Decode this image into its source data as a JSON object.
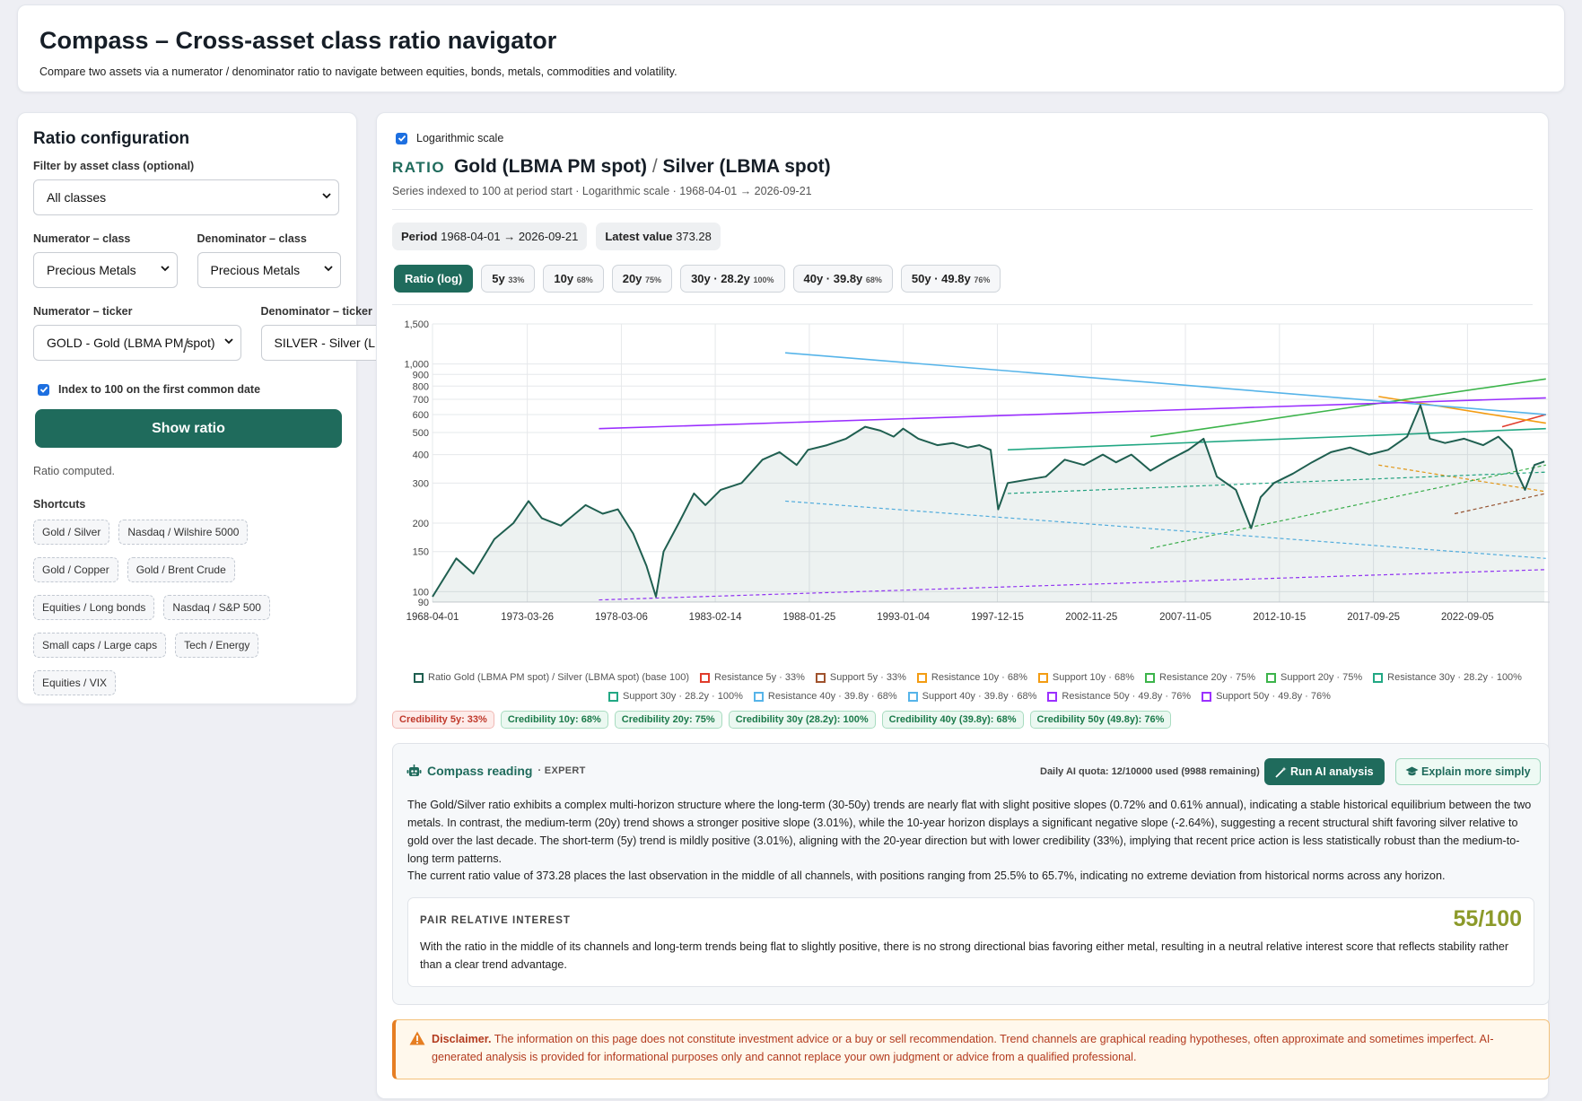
{
  "header": {
    "title": "Compass – Cross-asset class ratio navigator",
    "subtitle": "Compare two assets via a numerator / denominator ratio to navigate between equities, bonds, metals, commodities and volatility."
  },
  "config": {
    "title": "Ratio configuration",
    "filter_label": "Filter by asset class (optional)",
    "filter_value": "All classes",
    "num_class_label": "Numerator – class",
    "num_class_value": "Precious Metals",
    "den_class_label": "Denominator – class",
    "den_class_value": "Precious Metals",
    "num_ticker_label": "Numerator – ticker",
    "num_ticker_value": "GOLD - Gold (LBMA PM spot)",
    "den_ticker_label": "Denominator – ticker",
    "den_ticker_value": "SILVER - Silver (LBMA spot)",
    "slash": "/",
    "index_label": "Index to 100 on the first common date",
    "index_checked": true,
    "show_button": "Show ratio",
    "status": "Ratio computed.",
    "shortcuts_label": "Shortcuts",
    "shortcuts": [
      "Gold / Silver",
      "Nasdaq / Wilshire 5000",
      "Gold / Copper",
      "Gold / Brent Crude",
      "Equities / Long bonds",
      "Nasdaq / S&P 500",
      "Small caps / Large caps",
      "Tech / Energy",
      "Equities / VIX"
    ]
  },
  "main": {
    "log_label": "Logarithmic scale",
    "ratio_tag": "RATIO",
    "numerator": "Gold (LBMA PM spot)",
    "sep": "/",
    "denominator": "Silver (LBMA spot)",
    "meta": "Series indexed to 100 at period start · Logarithmic scale · 1968-04-01 → 2026-09-21",
    "period_label": "Period",
    "period_value": "1968-04-01 → 2026-09-21",
    "latest_label": "Latest value",
    "latest_value": "373.28",
    "tabs": [
      {
        "label": "Ratio (log)",
        "sub": "",
        "active": true
      },
      {
        "label": "5y",
        "sub": "33%"
      },
      {
        "label": "10y",
        "sub": "68%"
      },
      {
        "label": "20y",
        "sub": "75%"
      },
      {
        "label": "30y · 28.2y",
        "sub": "100%"
      },
      {
        "label": "40y · 39.8y",
        "sub": "68%"
      },
      {
        "label": "50y · 49.8y",
        "sub": "76%"
      }
    ]
  },
  "chart_data": {
    "type": "line",
    "yscale": "log",
    "ylim": [
      90,
      1500
    ],
    "yticks": [
      "1,500",
      "1,000",
      "900",
      "800",
      "700",
      "600",
      "500",
      "400",
      "300",
      "200",
      "150",
      "100",
      "90"
    ],
    "xticks": [
      "1968-04-01",
      "1973-03-26",
      "1978-03-06",
      "1983-02-14",
      "1988-01-25",
      "1993-01-04",
      "1997-12-15",
      "2002-11-25",
      "2007-11-05",
      "2012-10-15",
      "2017-09-25",
      "2022-09-05"
    ],
    "series": [
      {
        "name": "Ratio Gold (LBMA PM spot) / Silver (LBMA spot) (base 100)",
        "color": "#1f5f50",
        "x": [
          1968.25,
          1969.5,
          1970.4,
          1971.5,
          1972.5,
          1973.3,
          1974.0,
          1975.0,
          1976.3,
          1977.2,
          1978.0,
          1978.8,
          1979.5,
          1980.0,
          1980.4,
          1981.2,
          1982.0,
          1982.6,
          1983.4,
          1984.5,
          1985.6,
          1986.5,
          1987.4,
          1988.0,
          1989.0,
          1990.0,
          1991.0,
          1991.8,
          1992.5,
          1993.0,
          1993.8,
          1994.8,
          1995.6,
          1996.4,
          1997.0,
          1997.6,
          1998.0,
          1998.5,
          1999.5,
          2000.5,
          2001.5,
          2002.5,
          2003.5,
          2004.2,
          2005.0,
          2006.0,
          2007.0,
          2008.0,
          2008.8,
          2009.5,
          2010.5,
          2011.3,
          2011.8,
          2012.5,
          2013.5,
          2014.5,
          2015.5,
          2016.5,
          2017.5,
          2018.5,
          2019.5,
          2020.2,
          2020.7,
          2021.5,
          2022.5,
          2023.5,
          2024.3,
          2025.0,
          2025.3,
          2025.7,
          2026.2,
          2026.72
        ],
        "y": [
          95,
          140,
          120,
          170,
          200,
          250,
          210,
          195,
          240,
          220,
          230,
          180,
          130,
          95,
          150,
          200,
          270,
          240,
          280,
          300,
          380,
          410,
          360,
          420,
          440,
          470,
          530,
          510,
          480,
          520,
          470,
          440,
          450,
          430,
          440,
          420,
          230,
          300,
          310,
          320,
          380,
          360,
          400,
          370,
          400,
          340,
          380,
          420,
          470,
          320,
          280,
          190,
          260,
          300,
          330,
          370,
          410,
          430,
          400,
          420,
          480,
          660,
          470,
          450,
          470,
          440,
          480,
          420,
          330,
          280,
          360,
          373.28
        ]
      },
      {
        "name": "Resistance 5y · 33%",
        "color": "#e03c2c",
        "x": [
          2024.5,
          2026.8
        ],
        "y": [
          530,
          600
        ]
      },
      {
        "name": "Support 5y · 33%",
        "color": "#a0522d",
        "x": [
          2022.0,
          2026.8
        ],
        "y": [
          220,
          270
        ]
      },
      {
        "name": "Resistance 10y · 68%",
        "color": "#f39c12",
        "x": [
          2018.0,
          2026.8
        ],
        "y": [
          720,
          550
        ]
      },
      {
        "name": "Support 10y · 68%",
        "color": "#f39c12",
        "x": [
          2018.0,
          2026.8
        ],
        "y": [
          360,
          275
        ]
      },
      {
        "name": "Resistance 20y · 75%",
        "color": "#3cb44b",
        "x": [
          2006.0,
          2026.8
        ],
        "y": [
          480,
          860
        ]
      },
      {
        "name": "Support 20y · 75%",
        "color": "#3cb44b",
        "x": [
          2006.0,
          2026.8
        ],
        "y": [
          155,
          360
        ]
      },
      {
        "name": "Resistance 30y · 28.2y · 100%",
        "color": "#22a884",
        "x": [
          1998.5,
          2026.8
        ],
        "y": [
          420,
          520
        ]
      },
      {
        "name": "Support 30y · 28.2y · 100%",
        "color": "#22a884",
        "x": [
          1998.5,
          2026.8
        ],
        "y": [
          270,
          335
        ]
      },
      {
        "name": "Resistance 40y · 39.8y · 68%",
        "color": "#56b4e9",
        "x": [
          1986.8,
          2026.8
        ],
        "y": [
          1120,
          600
        ]
      },
      {
        "name": "Support 40y · 39.8y · 68%",
        "color": "#56b4e9",
        "x": [
          1986.8,
          2026.8
        ],
        "y": [
          250,
          140
        ]
      },
      {
        "name": "Resistance 50y · 49.8y · 76%",
        "color": "#9b30ff",
        "x": [
          1977.0,
          2026.8
        ],
        "y": [
          520,
          710
        ]
      },
      {
        "name": "Support 50y · 49.8y · 76%",
        "color": "#9b30ff",
        "x": [
          1977.0,
          2026.8
        ],
        "y": [
          92,
          125
        ]
      }
    ],
    "legend_row1": [
      {
        "label": "Ratio Gold (LBMA PM spot) / Silver (LBMA spot) (base 100)",
        "color": "#1f5f50",
        "style": "solid"
      },
      {
        "label": "Resistance 5y · 33%",
        "color": "#e03c2c",
        "style": "solid"
      },
      {
        "label": "Support 5y · 33%",
        "color": "#a0522d",
        "style": "dashed"
      },
      {
        "label": "Resistance 10y · 68%",
        "color": "#f39c12",
        "style": "solid"
      },
      {
        "label": "Support 10y · 68%",
        "color": "#f39c12",
        "style": "dashed"
      },
      {
        "label": "Resistance 20y · 75%",
        "color": "#3cb44b",
        "style": "solid"
      },
      {
        "label": "Support 20y · 75%",
        "color": "#3cb44b",
        "style": "dashed"
      },
      {
        "label": "Resistance 30y · 28.2y · 100%",
        "color": "#22a884",
        "style": "solid"
      }
    ],
    "legend_row2": [
      {
        "label": "Support 30y · 28.2y · 100%",
        "color": "#22a884",
        "style": "dashed"
      },
      {
        "label": "Resistance 40y · 39.8y · 68%",
        "color": "#56b4e9",
        "style": "solid"
      },
      {
        "label": "Support 40y · 39.8y · 68%",
        "color": "#56b4e9",
        "style": "dashed"
      },
      {
        "label": "Resistance 50y · 49.8y · 76%",
        "color": "#9b30ff",
        "style": "solid"
      },
      {
        "label": "Support 50y · 49.8y · 76%",
        "color": "#9b30ff",
        "style": "dashed"
      }
    ]
  },
  "credibility": [
    {
      "label": "Credibility 5y: 33%",
      "tone": "red"
    },
    {
      "label": "Credibility 10y: 68%",
      "tone": "grn"
    },
    {
      "label": "Credibility 20y: 75%",
      "tone": "grn"
    },
    {
      "label": "Credibility 30y (28.2y): 100%",
      "tone": "grn"
    },
    {
      "label": "Credibility 40y (39.8y): 68%",
      "tone": "grn"
    },
    {
      "label": "Credibility 50y (49.8y): 76%",
      "tone": "grn"
    }
  ],
  "reading": {
    "title": "Compass reading",
    "level": "· EXPERT",
    "quota": "Daily AI quota: 12/10000 used (9988 remaining)",
    "run_button": "Run AI analysis",
    "simple_button": "Explain more simply",
    "p1": "The Gold/Silver ratio exhibits a complex multi-horizon structure where the long-term (30-50y) trends are nearly flat with slight positive slopes (0.72% and 0.61% annual), indicating a stable historical equilibrium between the two metals. In contrast, the medium-term (20y) trend shows a stronger positive slope (3.01%), while the 10-year horizon displays a significant negative slope (-2.64%), suggesting a recent structural shift favoring silver relative to gold over the last decade. The short-term (5y) trend is mildly positive (3.01%), aligning with the 20-year direction but with lower credibility (33%), implying that recent price action is less statistically robust than the medium-to-long term patterns.",
    "p2": "The current ratio value of 373.28 places the last observation in the middle of all channels, with positions ranging from 25.5% to 65.7%, indicating no extreme deviation from historical norms across any horizon.",
    "interest_label": "PAIR RELATIVE INTEREST",
    "interest_score": "55/100",
    "interest_text": "With the ratio in the middle of its channels and long-term trends being flat to slightly positive, there is no strong directional bias favoring either metal, resulting in a neutral relative interest score that reflects stability rather than a clear trend advantage."
  },
  "disclaimer": {
    "label": "Disclaimer.",
    "text": "The information on this page does not constitute investment advice or a buy or sell recommendation. Trend channels are graphical reading hypotheses, often approximate and sometimes imperfect. AI-generated analysis is provided for informational purposes only and cannot replace your own judgment or advice from a qualified professional."
  }
}
